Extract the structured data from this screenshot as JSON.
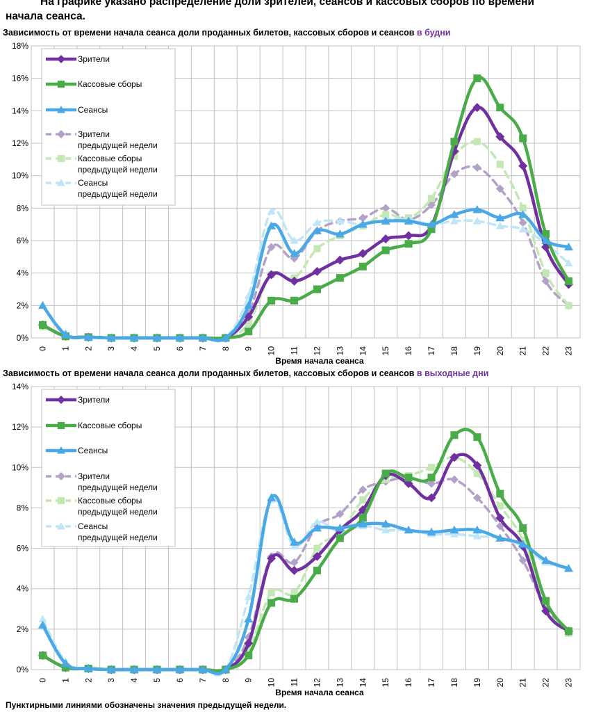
{
  "intro": {
    "line1": "На графике указано распределение доли зрителей, сеансов и кассовых сборов по времени",
    "line2": "начала сеанса."
  },
  "footnote": "Пунктирными линиями обозначены значения предыдущей недели.",
  "colors": {
    "viewers": "#7030a0",
    "boxoffice": "#4aac48",
    "sessions": "#4aa8e6",
    "viewers_prev": "#b3a2c7",
    "boxoffice_prev": "#c3e8b4",
    "sessions_prev": "#bfe5f7",
    "highlight": "#7030a0",
    "grid": "#c0c0c0"
  },
  "chart_data": [
    {
      "type": "line",
      "title": "Зависимость от времени начала сеанса доли проданных билетов, кассовых сборов и сеансов",
      "title_highlight": "в будни",
      "xlabel": "Время начала сеанса",
      "ylabel": "",
      "x": [
        0,
        1,
        2,
        3,
        4,
        5,
        6,
        7,
        8,
        9,
        10,
        11,
        12,
        13,
        14,
        15,
        16,
        17,
        18,
        19,
        20,
        21,
        22,
        23
      ],
      "ylim": [
        0,
        18
      ],
      "yticks": [
        "0%",
        "2%",
        "4%",
        "6%",
        "8%",
        "10%",
        "12%",
        "14%",
        "16%",
        "18%"
      ],
      "grid": true,
      "legend_position": "top-left",
      "series": [
        {
          "name": "Зрители",
          "style": "solid",
          "marker": "diamond",
          "color_key": "viewers",
          "values": [
            0.8,
            0.1,
            0.05,
            0,
            0,
            0,
            0,
            0,
            0,
            1.3,
            3.9,
            3.5,
            4.1,
            4.8,
            5.2,
            6.1,
            6.3,
            6.9,
            11.5,
            14.2,
            12.4,
            10.6,
            5.6,
            3.3
          ]
        },
        {
          "name": "Кассовые сборы",
          "style": "solid",
          "marker": "square",
          "color_key": "boxoffice",
          "values": [
            0.8,
            0.1,
            0.05,
            0,
            0,
            0,
            0,
            0,
            0,
            0.4,
            2.3,
            2.3,
            3.0,
            3.7,
            4.4,
            5.4,
            5.8,
            6.7,
            12.1,
            16.0,
            14.2,
            12.3,
            6.4,
            3.5
          ]
        },
        {
          "name": "Сеансы",
          "style": "solid",
          "marker": "triangle",
          "color_key": "sessions",
          "values": [
            2.0,
            0.2,
            0.05,
            0,
            0,
            0,
            0,
            0,
            0,
            2.0,
            6.9,
            5.2,
            6.6,
            6.4,
            7.0,
            7.2,
            7.2,
            7.0,
            7.6,
            7.9,
            7.4,
            7.6,
            6.0,
            5.6
          ]
        },
        {
          "name": "Зрители предыдущей недели",
          "style": "dashed",
          "marker": "diamond",
          "color_key": "viewers_prev",
          "values": [
            0.8,
            0.1,
            0.05,
            0,
            0,
            0,
            0,
            0,
            0,
            1.5,
            5.6,
            4.9,
            6.6,
            7.2,
            7.4,
            8.0,
            7.3,
            8.2,
            10.1,
            10.5,
            9.2,
            7.1,
            3.5,
            2.0
          ]
        },
        {
          "name": "Кассовые сборы предыдущей недели",
          "style": "dashed",
          "marker": "square",
          "color_key": "boxoffice_prev",
          "values": [
            0.7,
            0.1,
            0.05,
            0,
            0,
            0,
            0,
            0,
            0,
            0.9,
            3.9,
            3.7,
            5.5,
            6.3,
            6.9,
            7.6,
            7.4,
            8.6,
            11.2,
            12.1,
            10.7,
            8.0,
            4.0,
            2.0
          ]
        },
        {
          "name": "Сеансы предыдущей недели",
          "style": "dashed",
          "marker": "triangle",
          "color_key": "sessions_prev",
          "values": [
            2.0,
            0.3,
            0.05,
            0,
            0,
            0,
            0,
            0,
            0,
            2.6,
            7.8,
            6.0,
            7.1,
            7.2,
            7.0,
            7.3,
            7.3,
            7.0,
            7.2,
            7.2,
            6.9,
            6.7,
            5.8,
            4.6
          ]
        }
      ]
    },
    {
      "type": "line",
      "title": "Зависимость от времени начала сеанса доли проданных билетов, кассовых сборов и сеансов",
      "title_highlight": "в выходные дни",
      "xlabel": "Время начала сеанса",
      "ylabel": "",
      "x": [
        0,
        1,
        2,
        3,
        4,
        5,
        6,
        7,
        8,
        9,
        10,
        11,
        12,
        13,
        14,
        15,
        16,
        17,
        18,
        19,
        20,
        21,
        22,
        23
      ],
      "ylim": [
        0,
        14
      ],
      "yticks": [
        "0%",
        "2%",
        "4%",
        "6%",
        "8%",
        "10%",
        "12%",
        "14%"
      ],
      "grid": true,
      "legend_position": "top-left",
      "series": [
        {
          "name": "Зрители",
          "style": "solid",
          "marker": "diamond",
          "color_key": "viewers",
          "values": [
            0.7,
            0.1,
            0.05,
            0,
            0,
            0,
            0,
            0,
            0,
            1.3,
            5.5,
            4.9,
            5.6,
            6.9,
            7.9,
            9.6,
            9.2,
            8.5,
            10.5,
            10.1,
            7.5,
            6.1,
            2.9,
            1.9
          ]
        },
        {
          "name": "Кассовые сборы",
          "style": "solid",
          "marker": "square",
          "color_key": "boxoffice",
          "values": [
            0.7,
            0.1,
            0.05,
            0,
            0,
            0,
            0,
            0,
            0,
            0.7,
            3.3,
            3.5,
            4.9,
            6.5,
            7.5,
            9.7,
            9.5,
            9.5,
            11.6,
            11.5,
            8.7,
            7.0,
            3.4,
            1.9
          ]
        },
        {
          "name": "Сеансы",
          "style": "solid",
          "marker": "triangle",
          "color_key": "sessions",
          "values": [
            2.2,
            0.3,
            0.05,
            0,
            0,
            0,
            0,
            0,
            0,
            2.5,
            8.5,
            6.3,
            7.0,
            7.0,
            7.2,
            7.2,
            6.9,
            6.8,
            6.9,
            6.9,
            6.5,
            6.2,
            5.4,
            5.0
          ]
        },
        {
          "name": "Зрители предыдущей недели",
          "style": "dashed",
          "marker": "diamond",
          "color_key": "viewers_prev",
          "values": [
            0.7,
            0.1,
            0.05,
            0,
            0,
            0,
            0,
            0,
            0,
            1.6,
            5.6,
            5.3,
            7.1,
            7.7,
            8.9,
            9.3,
            9.5,
            9.2,
            9.4,
            8.5,
            7.1,
            5.4,
            3.1,
            1.9
          ]
        },
        {
          "name": "Кассовые сборы предыдущей недели",
          "style": "dashed",
          "marker": "square",
          "color_key": "boxoffice_prev",
          "values": [
            0.7,
            0.1,
            0.05,
            0,
            0,
            0,
            0,
            0,
            0,
            1.0,
            3.8,
            3.8,
            6.0,
            6.8,
            8.4,
            9.4,
            9.6,
            10.0,
            10.5,
            9.7,
            8.1,
            6.4,
            3.3,
            1.8
          ]
        },
        {
          "name": "Сеансы предыдущей недели",
          "style": "dashed",
          "marker": "triangle",
          "color_key": "sessions_prev",
          "values": [
            2.5,
            0.4,
            0.05,
            0,
            0,
            0,
            0,
            0,
            0,
            3.6,
            8.4,
            6.1,
            7.3,
            6.8,
            7.1,
            6.9,
            6.9,
            6.7,
            6.7,
            6.6,
            6.5,
            6.1,
            5.3,
            5.0
          ]
        }
      ]
    }
  ],
  "legend_lines": [
    [
      "Зрители"
    ],
    [
      "Кассовые сборы"
    ],
    [
      "Сеансы"
    ],
    [
      "Зрители",
      "предыдущей недели"
    ],
    [
      "Кассовые сборы",
      "предыдущей недели"
    ],
    [
      "Сеансы",
      "предыдущей недели"
    ]
  ]
}
